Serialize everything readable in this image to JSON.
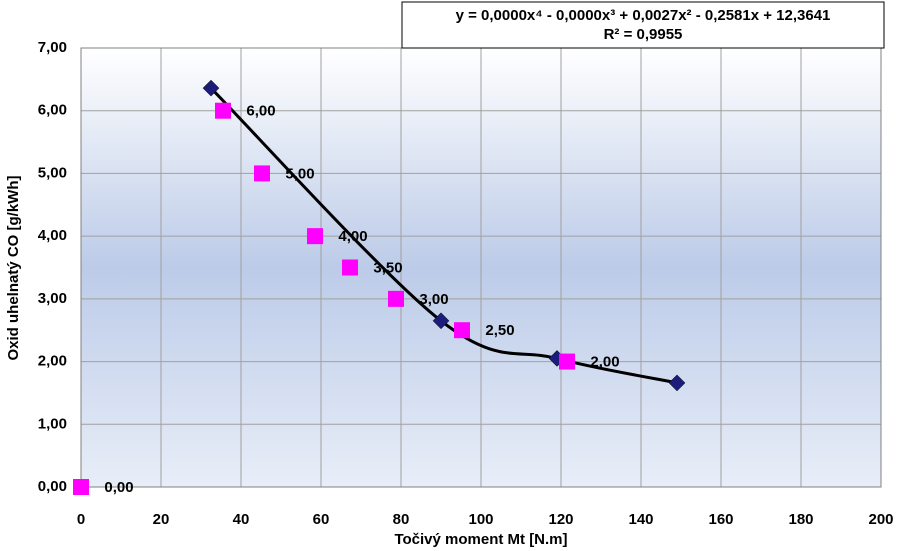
{
  "chart_data": {
    "type": "scatter",
    "x_label": "Točivý moment Mt [N.m]",
    "y_label": "Oxid uhelnatý CO [g/kWh]",
    "annotations": [
      "y = 0,0000x⁴ - 0,0000x³ + 0,0027x² - 0,2581x + 12,3641",
      "R² = 0,9955"
    ],
    "xlim": [
      0,
      200
    ],
    "xticks": [
      0,
      20,
      40,
      60,
      80,
      100,
      120,
      140,
      160,
      180,
      200
    ],
    "ylim": [
      0,
      7
    ],
    "yticks": [
      {
        "value": 0,
        "label": "0,00"
      },
      {
        "value": 1,
        "label": "1,00"
      },
      {
        "value": 2,
        "label": "2,00"
      },
      {
        "value": 3,
        "label": "3,00"
      },
      {
        "value": 4,
        "label": "4,00"
      },
      {
        "value": 5,
        "label": "5,00"
      },
      {
        "value": 6,
        "label": "6,00"
      },
      {
        "value": 7,
        "label": "7,00"
      }
    ],
    "grid": true,
    "series": [
      {
        "color": "#1c1c7a",
        "marker": "diamond",
        "trendline": true,
        "x": [
          32.5,
          90,
          119,
          149
        ],
        "values": [
          6.36,
          2.65,
          2.05,
          1.66
        ]
      },
      {
        "color": "#ff00ff",
        "marker": "square",
        "x": [
          0,
          35.5,
          45.25,
          58.5,
          67.25,
          78.75,
          95.25,
          121.5
        ],
        "values": [
          0,
          6,
          5,
          4,
          3.5,
          3,
          2.5,
          2
        ],
        "value_labels": [
          "0,00",
          "6,00",
          "5,00",
          "4,00",
          "3,50",
          "3,00",
          "2,50",
          "2,00"
        ]
      }
    ]
  }
}
